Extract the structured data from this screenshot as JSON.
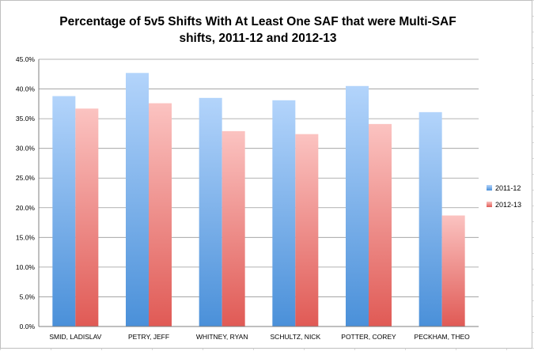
{
  "colors": {
    "series_2011_top": "#b3d4fb",
    "series_2011_bottom": "#4a90d9",
    "series_2012_top": "#fbc3c1",
    "series_2012_bottom": "#e05a55",
    "gridline": "#9a9a9a"
  },
  "chart_data": {
    "type": "bar",
    "title_lines": [
      "Percentage of 5v5 Shifts With At Least One SAF that were Multi-SAF",
      "shifts, 2011-12 and 2012-13"
    ],
    "categories": [
      "SMID, LADISLAV",
      "PETRY, JEFF",
      "WHITNEY, RYAN",
      "SCHULTZ, NICK",
      "POTTER, COREY",
      "PECKHAM, THEO"
    ],
    "series": [
      {
        "name": "2011-12",
        "values": [
          38.8,
          42.7,
          38.5,
          38.1,
          40.5,
          36.1
        ]
      },
      {
        "name": "2012-13",
        "values": [
          36.7,
          37.6,
          32.9,
          32.4,
          34.1,
          18.7
        ]
      }
    ],
    "y_ticks": [
      "0.0%",
      "5.0%",
      "10.0%",
      "15.0%",
      "20.0%",
      "25.0%",
      "30.0%",
      "35.0%",
      "40.0%",
      "45.0%"
    ],
    "ylim": [
      0,
      45
    ],
    "grid": true,
    "legend_position": "right"
  }
}
